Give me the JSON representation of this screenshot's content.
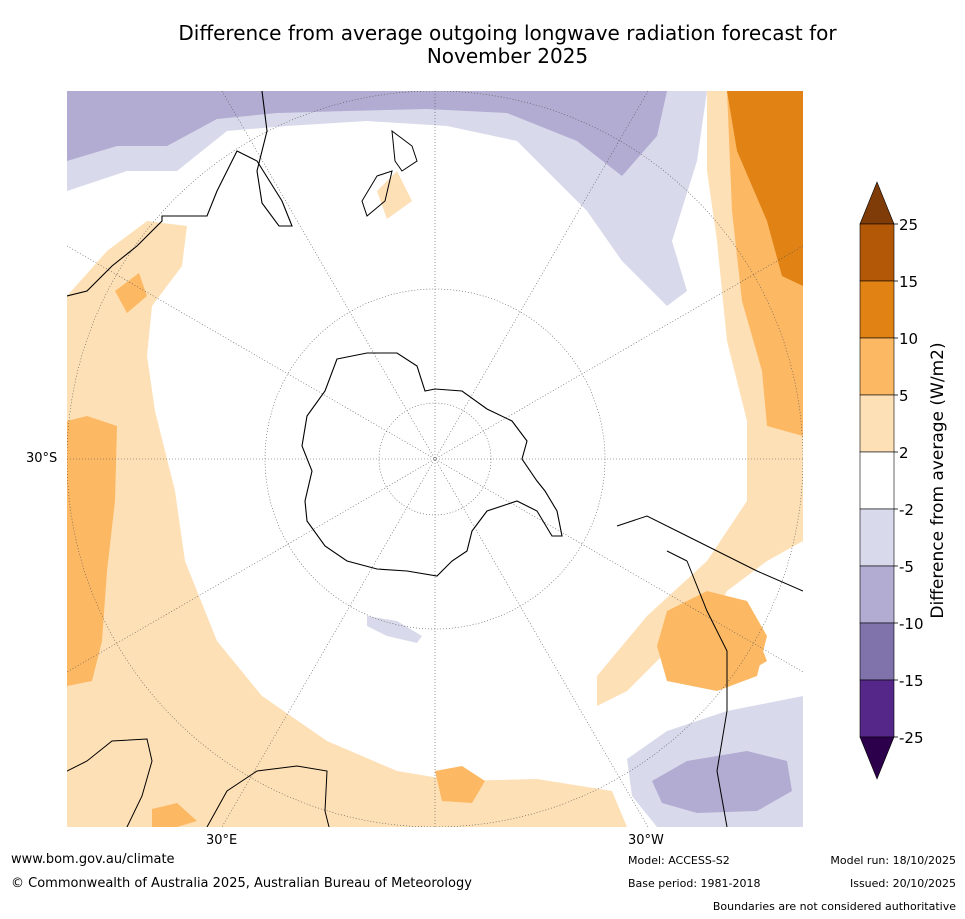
{
  "title_line1": "Difference from average outgoing longwave radiation forecast for",
  "title_line2": "November 2025",
  "axis_labels": {
    "lat_30s": "30°S",
    "lon_30e": "30°E",
    "lon_30w": "30°W"
  },
  "colorbar": {
    "label": "Difference from average (W/m2)",
    "ticks": [
      "25",
      "15",
      "10",
      "5",
      "2",
      "-2",
      "-5",
      "-10",
      "-15",
      "-25"
    ],
    "colors": {
      "over": "#7f3b08",
      "c15_25": "#b35806",
      "c10_15": "#e08214",
      "c5_10": "#fdb863",
      "c2_5": "#fee0b6",
      "neutral": "#ffffff",
      "cm5_m2": "#d8daeb",
      "cm10_m5": "#b2abd2",
      "cm15_m10": "#8073ac",
      "cm25_m15": "#542788",
      "under": "#2d004b"
    }
  },
  "footer": {
    "website": "www.bom.gov.au/climate",
    "copyright": "© Commonwealth of Australia 2025, Australian Bureau of Meteorology",
    "model": "Model: ACCESS-S2",
    "base_period": "Base period: 1981-2018",
    "model_run": "Model run: 18/10/2025",
    "issued": "Issued: 20/10/2025",
    "disclaimer": "Boundaries are not considered authoritative"
  }
}
